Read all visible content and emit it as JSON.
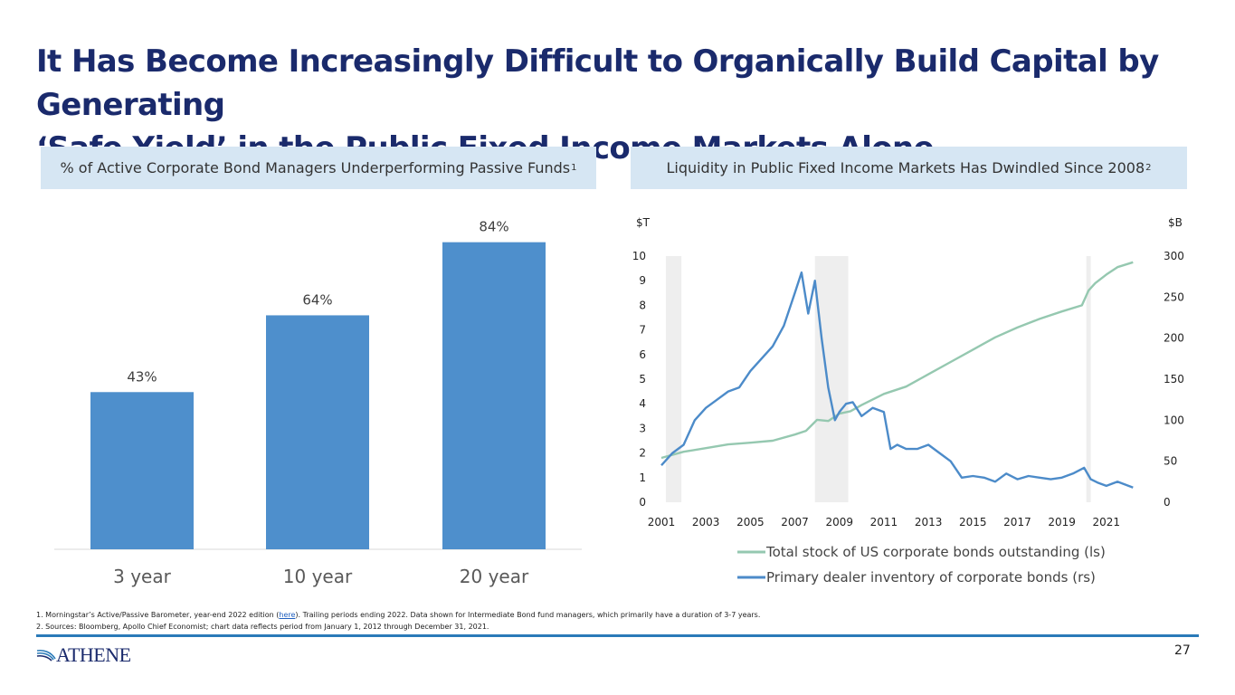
{
  "slide": {
    "title_line1": "It Has Become Increasingly Difficult to Organically Build Capital by Generating",
    "title_line2": "‘Safe Yield’ in the Public Fixed Income Markets Alone",
    "page_number": "27"
  },
  "left_panel": {
    "header": "% of Active Corporate Bond Managers Underperforming Passive Funds",
    "header_note": "1"
  },
  "right_panel": {
    "header": "Liquidity in Public Fixed Income Markets Has Dwindled Since 2008",
    "header_note": "2"
  },
  "footnotes": {
    "note1_pre": "1. Morningstar’s Active/Passive Barometer, year-end 2022 edition (",
    "note1_link": "here",
    "note1_post": "). Trailing periods ending 2022. Data shown for Intermediate Bond fund managers, which primarily have a duration of 3-7 years.",
    "note2": "2. Sources: Bloomberg, Apollo Chief Economist; chart data reflects period from January 1, 2012 through December 31, 2021."
  },
  "logo": {
    "text": "ATHENE",
    "icon": "athene-swoosh-icon"
  },
  "colors": {
    "title": "#1a2a6c",
    "bar": "#4e8fcc",
    "green_line": "#95c8b0",
    "blue_line": "#4c8bc9",
    "header_bg": "#d6e6f3",
    "rule": "#2a7ab8"
  },
  "chart_data": [
    {
      "type": "bar",
      "categories": [
        "3 year",
        "10 year",
        "20 year"
      ],
      "values": [
        43,
        64,
        84
      ],
      "value_labels": [
        "43%",
        "64%",
        "84%"
      ],
      "ylim": [
        0,
        100
      ],
      "unit": "%"
    },
    {
      "type": "line",
      "x_ticks": [
        "2001",
        "2003",
        "2005",
        "2007",
        "2009",
        "2011",
        "2013",
        "2015",
        "2017",
        "2019",
        "2021"
      ],
      "xlim": [
        2001,
        2023
      ],
      "left_axis": {
        "unit": "$T",
        "ylim": [
          0,
          10
        ],
        "ticks": [
          "0",
          "1",
          "2",
          "3",
          "4",
          "5",
          "6",
          "7",
          "8",
          "9",
          "10"
        ]
      },
      "right_axis": {
        "unit": "$B",
        "ylim": [
          0,
          300
        ],
        "ticks": [
          "0",
          "50",
          "100",
          "150",
          "200",
          "250",
          "300"
        ]
      },
      "shaded_periods": [
        [
          2001.2,
          2001.9
        ],
        [
          2007.9,
          2009.4
        ],
        [
          2020.1,
          2020.3
        ]
      ],
      "series": [
        {
          "name": "Total stock of US corporate bonds outstanding (ls)",
          "axis": "left",
          "color": "#95c8b0",
          "x": [
            2001,
            2002,
            2003,
            2004,
            2005,
            2006,
            2007,
            2007.5,
            2008,
            2008.5,
            2009,
            2009.5,
            2010,
            2011,
            2012,
            2013,
            2014,
            2015,
            2016,
            2017,
            2018,
            2019,
            2019.9,
            2020.2,
            2020.5,
            2021,
            2021.5,
            2022.2
          ],
          "y": [
            1.8,
            2.05,
            2.2,
            2.35,
            2.42,
            2.5,
            2.75,
            2.9,
            3.35,
            3.3,
            3.6,
            3.7,
            3.95,
            4.4,
            4.7,
            5.2,
            5.7,
            6.2,
            6.7,
            7.1,
            7.45,
            7.75,
            8.0,
            8.6,
            8.9,
            9.25,
            9.55,
            9.75
          ]
        },
        {
          "name": "Primary dealer inventory of corporate bonds (rs)",
          "axis": "right",
          "color": "#4c8bc9",
          "x": [
            2001,
            2001.5,
            2002,
            2002.5,
            2003,
            2003.5,
            2004,
            2004.5,
            2005,
            2005.5,
            2006,
            2006.5,
            2007,
            2007.3,
            2007.6,
            2007.9,
            2008.2,
            2008.5,
            2008.8,
            2009.0,
            2009.3,
            2009.6,
            2010,
            2010.5,
            2011,
            2011.3,
            2011.6,
            2012,
            2012.5,
            2013,
            2013.5,
            2014,
            2014.5,
            2015,
            2015.5,
            2016,
            2016.5,
            2017,
            2017.5,
            2018,
            2018.5,
            2019,
            2019.5,
            2020,
            2020.3,
            2020.6,
            2021,
            2021.5,
            2022.2
          ],
          "y": [
            45,
            60,
            70,
            100,
            115,
            125,
            135,
            140,
            160,
            175,
            190,
            215,
            255,
            280,
            230,
            270,
            200,
            140,
            100,
            110,
            120,
            122,
            105,
            115,
            110,
            65,
            70,
            65,
            65,
            70,
            60,
            50,
            30,
            32,
            30,
            25,
            35,
            28,
            32,
            30,
            28,
            30,
            35,
            42,
            28,
            24,
            20,
            25,
            18
          ]
        }
      ]
    }
  ]
}
